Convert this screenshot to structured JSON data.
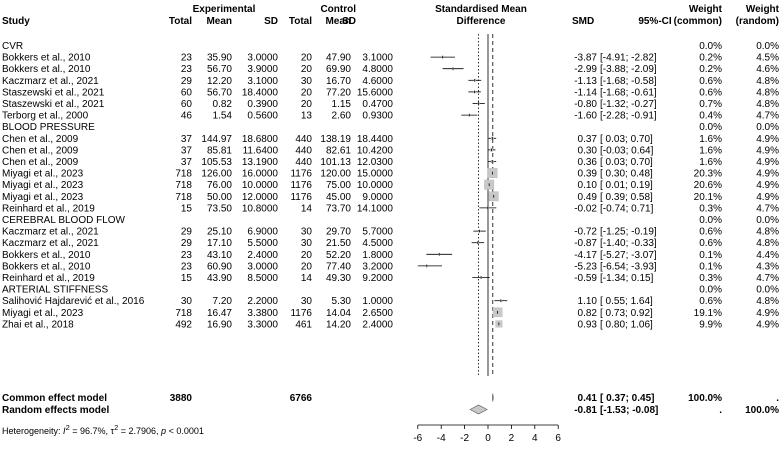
{
  "chart_data": {
    "type": "forest",
    "headers": {
      "study": "Study",
      "experimental_group": "Experimental",
      "control_group": "Control",
      "total": "Total",
      "mean": "Mean",
      "sd": "SD",
      "plot_title_line1": "Standardised Mean",
      "plot_title_line2": "Difference",
      "smd": "SMD",
      "ci": "95%-CI",
      "weight": "Weight",
      "weight_common": "(common)",
      "weight_random": "(random)"
    },
    "x_ticks": [
      -6,
      -4,
      -2,
      0,
      2,
      4,
      6
    ],
    "xlim": [
      -6,
      6
    ],
    "reference_lines": {
      "null": 0,
      "common_effect": 0.41,
      "random_effect": -0.81
    },
    "rows": [
      {
        "type": "group",
        "label": "CVR",
        "w_common": "0.0%",
        "w_random": "0.0%"
      },
      {
        "type": "study",
        "label": "Bokkers et al., 2010",
        "e_total": "23",
        "e_mean": "35.90",
        "e_sd": "3.0000",
        "c_total": "20",
        "c_mean": "47.90",
        "c_sd": "3.1000",
        "smd": -3.87,
        "lo": -4.91,
        "hi": -2.82,
        "smd_text": "-3.87",
        "ci_text": "[-4.91; -2.82]",
        "w_common": "0.2%",
        "w_random": "4.5%",
        "wc": 0.2
      },
      {
        "type": "study",
        "label": "Bokkers et al., 2010",
        "e_total": "23",
        "e_mean": "56.70",
        "e_sd": "3.9000",
        "c_total": "20",
        "c_mean": "69.90",
        "c_sd": "4.8000",
        "smd": -2.99,
        "lo": -3.88,
        "hi": -2.09,
        "smd_text": "-2.99",
        "ci_text": "[-3.88; -2.09]",
        "w_common": "0.2%",
        "w_random": "4.6%",
        "wc": 0.2
      },
      {
        "type": "study",
        "label": "Kaczmarz et al., 2021",
        "e_total": "29",
        "e_mean": "12.20",
        "e_sd": "3.1000",
        "c_total": "30",
        "c_mean": "16.70",
        "c_sd": "4.6000",
        "smd": -1.13,
        "lo": -1.68,
        "hi": -0.58,
        "smd_text": "-1.13",
        "ci_text": "[-1.68; -0.58]",
        "w_common": "0.6%",
        "w_random": "4.8%",
        "wc": 0.6
      },
      {
        "type": "study",
        "label": "Staszewski et al., 2021",
        "e_total": "60",
        "e_mean": "56.70",
        "e_sd": "18.4000",
        "c_total": "20",
        "c_mean": "77.20",
        "c_sd": "15.6000",
        "smd": -1.14,
        "lo": -1.68,
        "hi": -0.61,
        "smd_text": "-1.14",
        "ci_text": "[-1.68; -0.61]",
        "w_common": "0.6%",
        "w_random": "4.8%",
        "wc": 0.6
      },
      {
        "type": "study",
        "label": "Staszewski et al., 2021",
        "e_total": "60",
        "e_mean": "0.82",
        "e_sd": "0.3900",
        "c_total": "20",
        "c_mean": "1.15",
        "c_sd": "0.4700",
        "smd": -0.8,
        "lo": -1.32,
        "hi": -0.27,
        "smd_text": "-0.80",
        "ci_text": "[-1.32; -0.27]",
        "w_common": "0.7%",
        "w_random": "4.8%",
        "wc": 0.7
      },
      {
        "type": "study",
        "label": "Terborg et al., 2000",
        "e_total": "46",
        "e_mean": "1.54",
        "e_sd": "0.5600",
        "c_total": "13",
        "c_mean": "2.60",
        "c_sd": "0.9300",
        "smd": -1.6,
        "lo": -2.28,
        "hi": -0.91,
        "smd_text": "-1.60",
        "ci_text": "[-2.28; -0.91]",
        "w_common": "0.4%",
        "w_random": "4.7%",
        "wc": 0.4
      },
      {
        "type": "group",
        "label": "BLOOD PRESSURE",
        "w_common": "0.0%",
        "w_random": "0.0%"
      },
      {
        "type": "study",
        "label": "Chen et al., 2009",
        "e_total": "37",
        "e_mean": "144.97",
        "e_sd": "18.6800",
        "c_total": "440",
        "c_mean": "138.19",
        "c_sd": "18.4400",
        "smd": 0.37,
        "lo": 0.03,
        "hi": 0.7,
        "smd_text": "0.37",
        "ci_text": "[ 0.03; 0.70]",
        "w_common": "1.6%",
        "w_random": "4.9%",
        "wc": 1.6
      },
      {
        "type": "study",
        "label": "Chen et al., 2009",
        "e_total": "37",
        "e_mean": "85.81",
        "e_sd": "11.6400",
        "c_total": "440",
        "c_mean": "82.61",
        "c_sd": "10.4200",
        "smd": 0.3,
        "lo": -0.03,
        "hi": 0.64,
        "smd_text": "0.30",
        "ci_text": "[-0.03; 0.64]",
        "w_common": "1.6%",
        "w_random": "4.9%",
        "wc": 1.6
      },
      {
        "type": "study",
        "label": "Chen et al., 2009",
        "e_total": "37",
        "e_mean": "105.53",
        "e_sd": "13.1900",
        "c_total": "440",
        "c_mean": "101.13",
        "c_sd": "12.0300",
        "smd": 0.36,
        "lo": 0.03,
        "hi": 0.7,
        "smd_text": "0.36",
        "ci_text": "[ 0.03; 0.70]",
        "w_common": "1.6%",
        "w_random": "4.9%",
        "wc": 1.6
      },
      {
        "type": "study",
        "label": "Miyagi et al., 2023",
        "e_total": "718",
        "e_mean": "126.00",
        "e_sd": "16.0000",
        "c_total": "1176",
        "c_mean": "120.00",
        "c_sd": "15.0000",
        "smd": 0.39,
        "lo": 0.3,
        "hi": 0.48,
        "smd_text": "0.39",
        "ci_text": "[ 0.30; 0.48]",
        "w_common": "20.3%",
        "w_random": "4.9%",
        "wc": 20.3
      },
      {
        "type": "study",
        "label": "Miyagi et al., 2023",
        "e_total": "718",
        "e_mean": "76.00",
        "e_sd": "10.0000",
        "c_total": "1176",
        "c_mean": "75.00",
        "c_sd": "10.0000",
        "smd": 0.1,
        "lo": 0.01,
        "hi": 0.19,
        "smd_text": "0.10",
        "ci_text": "[ 0.01; 0.19]",
        "w_common": "20.6%",
        "w_random": "4.9%",
        "wc": 20.6
      },
      {
        "type": "study",
        "label": "Miyagi et al., 2023",
        "e_total": "718",
        "e_mean": "50.00",
        "e_sd": "12.0000",
        "c_total": "1176",
        "c_mean": "45.00",
        "c_sd": "9.0000",
        "smd": 0.49,
        "lo": 0.39,
        "hi": 0.58,
        "smd_text": "0.49",
        "ci_text": "[ 0.39; 0.58]",
        "w_common": "20.1%",
        "w_random": "4.9%",
        "wc": 20.1
      },
      {
        "type": "study",
        "label": "Reinhard et al., 2019",
        "e_total": "15",
        "e_mean": "73.50",
        "e_sd": "10.8000",
        "c_total": "14",
        "c_mean": "73.70",
        "c_sd": "14.1000",
        "smd": -0.02,
        "lo": -0.74,
        "hi": 0.71,
        "smd_text": "-0.02",
        "ci_text": "[-0.74; 0.71]",
        "w_common": "0.3%",
        "w_random": "4.7%",
        "wc": 0.3
      },
      {
        "type": "group",
        "label": "CEREBRAL BLOOD FLOW",
        "w_common": "0.0%",
        "w_random": "0.0%"
      },
      {
        "type": "study",
        "label": "Kaczmarz et al., 2021",
        "e_total": "29",
        "e_mean": "25.10",
        "e_sd": "6.9000",
        "c_total": "30",
        "c_mean": "29.70",
        "c_sd": "5.7000",
        "smd": -0.72,
        "lo": -1.25,
        "hi": -0.19,
        "smd_text": "-0.72",
        "ci_text": "[-1.25; -0.19]",
        "w_common": "0.6%",
        "w_random": "4.8%",
        "wc": 0.6
      },
      {
        "type": "study",
        "label": "Kaczmarz et al., 2021",
        "e_total": "29",
        "e_mean": "17.10",
        "e_sd": "5.5000",
        "c_total": "30",
        "c_mean": "21.50",
        "c_sd": "4.5000",
        "smd": -0.87,
        "lo": -1.4,
        "hi": -0.33,
        "smd_text": "-0.87",
        "ci_text": "[-1.40; -0.33]",
        "w_common": "0.6%",
        "w_random": "4.8%",
        "wc": 0.6
      },
      {
        "type": "study",
        "label": "Bokkers et al., 2010",
        "e_total": "23",
        "e_mean": "43.10",
        "e_sd": "2.4000",
        "c_total": "20",
        "c_mean": "52.20",
        "c_sd": "1.8000",
        "smd": -4.17,
        "lo": -5.27,
        "hi": -3.07,
        "smd_text": "-4.17",
        "ci_text": "[-5.27; -3.07]",
        "w_common": "0.1%",
        "w_random": "4.4%",
        "wc": 0.1
      },
      {
        "type": "study",
        "label": "Bokkers et al., 2010",
        "e_total": "23",
        "e_mean": "60.90",
        "e_sd": "3.0000",
        "c_total": "20",
        "c_mean": "77.40",
        "c_sd": "3.2000",
        "smd": -5.23,
        "lo": -6.54,
        "hi": -3.93,
        "smd_text": "-5.23",
        "ci_text": "[-6.54; -3.93]",
        "w_common": "0.1%",
        "w_random": "4.3%",
        "wc": 0.1
      },
      {
        "type": "study",
        "label": "Reinhard et al., 2019",
        "e_total": "15",
        "e_mean": "43.90",
        "e_sd": "8.5000",
        "c_total": "14",
        "c_mean": "49.30",
        "c_sd": "9.2000",
        "smd": -0.59,
        "lo": -1.34,
        "hi": 0.15,
        "smd_text": "-0.59",
        "ci_text": "[-1.34; 0.15]",
        "w_common": "0.3%",
        "w_random": "4.7%",
        "wc": 0.3
      },
      {
        "type": "group",
        "label": "ARTERIAL STIFFNESS",
        "w_common": "0.0%",
        "w_random": "0.0%"
      },
      {
        "type": "study",
        "label": "Salihović Hajdarević et al., 2016",
        "e_total": "30",
        "e_mean": "7.20",
        "e_sd": "2.2000",
        "c_total": "30",
        "c_mean": "5.30",
        "c_sd": "1.0000",
        "smd": 1.1,
        "lo": 0.55,
        "hi": 1.64,
        "smd_text": "1.10",
        "ci_text": "[ 0.55; 1.64]",
        "w_common": "0.6%",
        "w_random": "4.8%",
        "wc": 0.6
      },
      {
        "type": "study",
        "label": "Miyagi et al., 2023",
        "e_total": "718",
        "e_mean": "16.47",
        "e_sd": "3.3800",
        "c_total": "1176",
        "c_mean": "14.04",
        "c_sd": "2.6500",
        "smd": 0.82,
        "lo": 0.73,
        "hi": 0.92,
        "smd_text": "0.82",
        "ci_text": "[ 0.73; 0.92]",
        "w_common": "19.1%",
        "w_random": "4.9%",
        "wc": 19.1
      },
      {
        "type": "study",
        "label": "Zhai et al., 2018",
        "e_total": "492",
        "e_mean": "16.90",
        "e_sd": "3.3000",
        "c_total": "461",
        "c_mean": "14.20",
        "c_sd": "2.4000",
        "smd": 0.93,
        "lo": 0.8,
        "hi": 1.06,
        "smd_text": "0.93",
        "ci_text": "[ 0.80; 1.06]",
        "w_common": "9.9%",
        "w_random": "4.9%",
        "wc": 9.9
      }
    ],
    "summary": [
      {
        "label": "Common effect model",
        "e_total": "3880",
        "c_total": "6766",
        "est": 0.41,
        "lo": 0.37,
        "hi": 0.45,
        "smd_text": "0.41",
        "ci_text": "[ 0.37; 0.45]",
        "w_common": "100.0%",
        "w_random": "."
      },
      {
        "label": "Random effects model",
        "est": -0.81,
        "lo": -1.53,
        "hi": -0.08,
        "smd_text": "-0.81",
        "ci_text": "[-1.53; -0.08]",
        "w_common": ".",
        "w_random": "100.0%"
      }
    ],
    "heterogeneity": {
      "prefix": "Heterogeneity: ",
      "i2_label": "I",
      "i2_sup": "2",
      "i2_value": " = 96.7%, ",
      "tau_label": "τ",
      "tau_sup": "2",
      "tau_value": " = 2.7906, ",
      "p_label": "p",
      "p_value": " < 0.0001"
    }
  }
}
